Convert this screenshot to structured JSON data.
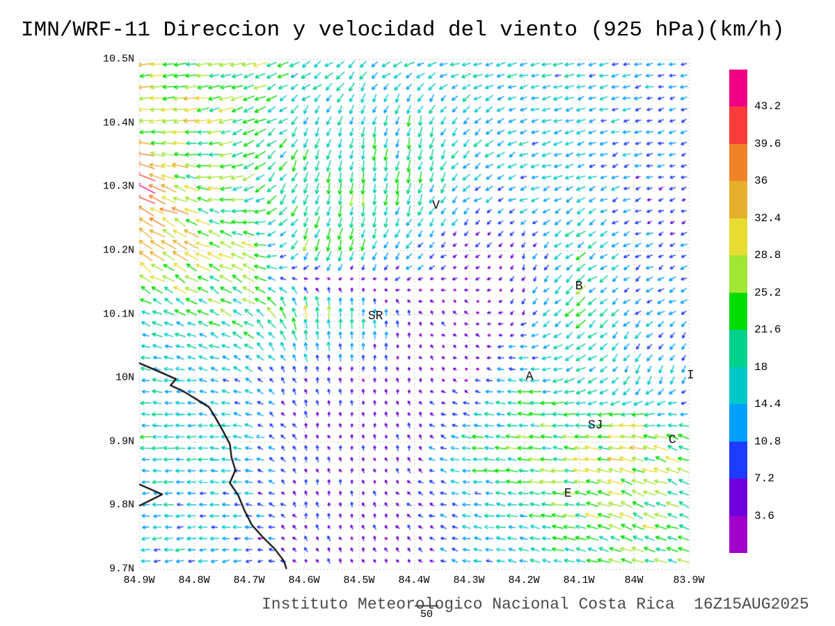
{
  "chart_data": {
    "type": "quiver",
    "title": "IMN/WRF-11 Direccion y velocidad del viento (925 hPa)(km/h)",
    "footer": "Instituto Meteorologico Nacional Costa Rica  16Z15AUG2025",
    "units": "km/h",
    "level": "925 hPa",
    "xlim": [
      -84.9,
      -83.9
    ],
    "ylim": [
      9.7,
      10.5
    ],
    "grid_style": "dotted",
    "x_tick_labels": [
      "84.9W",
      "84.8W",
      "84.7W",
      "84.6W",
      "84.5W",
      "84.4W",
      "84.3W",
      "84.2W",
      "84.1W",
      "84W",
      "83.9W"
    ],
    "y_tick_labels": [
      "10.5N",
      "10.4N",
      "10.3N",
      "10.2N",
      "10.1N",
      "10N",
      "9.9N",
      "9.8N",
      "9.7N"
    ],
    "colorbar": {
      "position": "right",
      "tick_labels": [
        "3.6",
        "7.2",
        "10.8",
        "14.4",
        "18",
        "21.6",
        "25.2",
        "28.8",
        "32.4",
        "36",
        "39.6",
        "43.2"
      ],
      "thresholds": [
        3.6,
        7.2,
        10.8,
        14.4,
        18,
        21.6,
        25.2,
        28.8,
        32.4,
        36,
        39.6,
        43.2
      ],
      "colors_low_to_high": [
        "#A000C8",
        "#6E00DC",
        "#1E3CFF",
        "#00A0FF",
        "#00C8C8",
        "#00D28C",
        "#00DC00",
        "#A0E632",
        "#E6DC32",
        "#E6AF2D",
        "#F08228",
        "#FA3C3C",
        "#F00082"
      ]
    },
    "ref_vector": {
      "label": "50",
      "value_kmh": 50
    },
    "city_labels": [
      {
        "text": "V",
        "lon": -84.36,
        "lat": 10.27
      },
      {
        "text": "B",
        "lon": -84.1,
        "lat": 10.143
      },
      {
        "text": "SR",
        "lon": -84.47,
        "lat": 10.096
      },
      {
        "text": "A",
        "lon": -84.19,
        "lat": 10.001
      },
      {
        "text": "SJ",
        "lon": -84.07,
        "lat": 9.925
      },
      {
        "text": "C",
        "lon": -83.93,
        "lat": 9.902
      },
      {
        "text": "E",
        "lon": -84.12,
        "lat": 9.818
      },
      {
        "text": "I",
        "lon": -83.897,
        "lat": 10.003
      }
    ],
    "wind_grid": {
      "lons": [
        -84.9,
        -84.8,
        -84.7,
        -84.6,
        -84.5,
        -84.4,
        -84.3,
        -84.2,
        -84.1,
        -84.0,
        -83.9
      ],
      "lats": [
        10.5,
        10.4,
        10.3,
        10.2,
        10.1,
        10.0,
        9.9,
        9.8,
        9.7
      ],
      "u_kmh": [
        [
          -26,
          -27,
          -24,
          -17,
          -13,
          -16,
          -15,
          -15,
          -14,
          -13,
          -11
        ],
        [
          -28,
          -26,
          -22,
          -8,
          -4,
          -3,
          -10,
          -14,
          -13,
          -11,
          -10
        ],
        [
          -36,
          -26,
          -18,
          -6,
          -2,
          -4,
          -12,
          -14,
          -13,
          -10,
          -6
        ],
        [
          -30,
          -26,
          -24,
          -8,
          -5,
          -10,
          -4,
          -3,
          -14,
          -9,
          -8
        ],
        [
          -14,
          -18,
          -20,
          -4,
          2,
          -3,
          -3,
          -4,
          -16,
          -10,
          -9
        ],
        [
          -15,
          -14,
          -10,
          -2,
          0,
          -1,
          -3,
          -18,
          -14,
          -6,
          -4
        ],
        [
          -18,
          -16,
          -13,
          -2,
          0,
          -2,
          -20,
          -22,
          -26,
          -30,
          -20
        ],
        [
          -15,
          -14,
          -12,
          -2,
          -1,
          -5,
          -12,
          -18,
          -24,
          -24,
          -22
        ],
        [
          -14,
          -14,
          -12,
          -3,
          -2,
          -3,
          -12,
          -16,
          -18,
          -22,
          -20
        ]
      ],
      "v_kmh": [
        [
          -3,
          -2,
          -6,
          -8,
          -10,
          -5,
          -4,
          -3,
          -3,
          -2,
          -2
        ],
        [
          -2,
          -4,
          -8,
          -14,
          -16,
          -18,
          -12,
          -5,
          -4,
          -3,
          -3
        ],
        [
          18,
          6,
          -10,
          -20,
          -22,
          -20,
          -10,
          -4,
          -6,
          -3,
          -2
        ],
        [
          20,
          14,
          10,
          -20,
          -18,
          -10,
          -4,
          -6,
          -12,
          -5,
          -3
        ],
        [
          6,
          8,
          12,
          26,
          18,
          4,
          3,
          -6,
          -14,
          -8,
          -6
        ],
        [
          2,
          2,
          6,
          8,
          5,
          4,
          2,
          2,
          -8,
          -14,
          -10
        ],
        [
          0,
          0,
          2,
          7,
          5,
          6,
          2,
          2,
          3,
          5,
          8
        ],
        [
          0,
          0,
          2,
          6,
          5,
          4,
          2,
          3,
          4,
          10,
          8
        ],
        [
          -2,
          -2,
          -3,
          6,
          4,
          5,
          2,
          3,
          4,
          5,
          4
        ]
      ]
    },
    "coastline": [
      [
        [
          -84.9,
          10.023
        ],
        [
          -84.862,
          10.009
        ],
        [
          -84.833,
          9.998
        ],
        [
          -84.843,
          9.988
        ],
        [
          -84.82,
          9.979
        ],
        [
          -84.799,
          9.968
        ],
        [
          -84.773,
          9.954
        ],
        [
          -84.763,
          9.94
        ],
        [
          -84.751,
          9.922
        ],
        [
          -84.735,
          9.896
        ],
        [
          -84.732,
          9.875
        ],
        [
          -84.725,
          9.855
        ],
        [
          -84.735,
          9.835
        ],
        [
          -84.72,
          9.816
        ],
        [
          -84.708,
          9.791
        ],
        [
          -84.695,
          9.769
        ],
        [
          -84.675,
          9.75
        ],
        [
          -84.653,
          9.731
        ],
        [
          -84.637,
          9.713
        ],
        [
          -84.632,
          9.7
        ]
      ],
      [
        [
          -84.9,
          9.833
        ],
        [
          -84.858,
          9.817
        ],
        [
          -84.9,
          9.799
        ]
      ]
    ]
  }
}
